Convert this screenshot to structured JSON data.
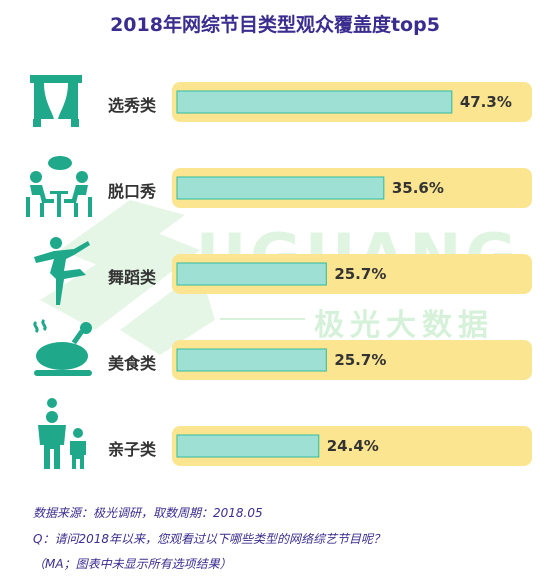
{
  "chart_data": {
    "type": "bar",
    "title": "2018年网综节目类型观众覆盖度top5",
    "categories": [
      "选秀类",
      "脱口秀",
      "舞蹈类",
      "美食类",
      "亲子类"
    ],
    "values": [
      47.3,
      35.6,
      25.7,
      25.7,
      24.4
    ],
    "value_labels": [
      "47.3%",
      "35.6%",
      "25.7%",
      "25.7%",
      "24.4%"
    ],
    "xlim": [
      0,
      50
    ],
    "orientation": "horizontal",
    "colors": {
      "bar": "#9fe0d4",
      "bar_border": "#2dbb9f",
      "track": "#fbe590",
      "title": "#3b2d8f",
      "icon": "#1fa98a"
    }
  },
  "icons": [
    "stage-curtain-icon",
    "talk-show-icon",
    "dancer-icon",
    "roast-chicken-icon",
    "parent-child-icon"
  ],
  "watermark": {
    "text": "JIGUANG",
    "subtext": "极光大数据"
  },
  "footer": {
    "source": "数据来源：极光调研，取数周期：2018.05",
    "question": "Q：请问2018年以来，您观看过以下哪些类型的网络综艺节目呢？",
    "note": "（MA；图表中未显示所有选项结果）"
  }
}
